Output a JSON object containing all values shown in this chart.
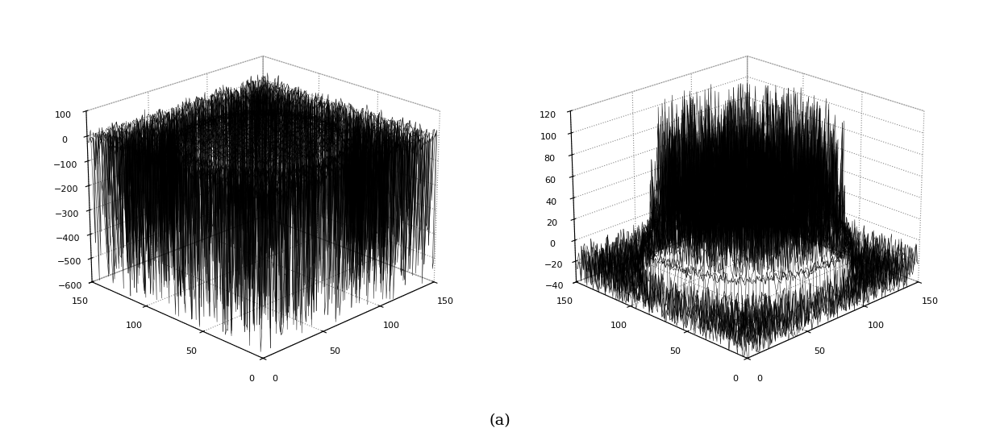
{
  "fig_width": 12.4,
  "fig_height": 5.36,
  "dpi": 100,
  "background_color": "#ffffff",
  "caption": "(a)",
  "caption_fontsize": 14,
  "grid_size": 150,
  "left_plot": {
    "zlim": [
      -600,
      100
    ],
    "zticks": [
      -600,
      -500,
      -400,
      -300,
      -200,
      -100,
      0,
      100
    ],
    "xlim": [
      0,
      150
    ],
    "ylim": [
      0,
      150
    ],
    "xticks": [
      0,
      50,
      100,
      150
    ],
    "yticks": [
      0,
      50,
      100,
      150
    ],
    "elev": 22,
    "azim": 225,
    "linewidth": 0.4,
    "color": "black",
    "rstride": 3,
    "cstride": 3
  },
  "right_plot": {
    "zlim": [
      -40,
      120
    ],
    "zticks": [
      -40,
      -20,
      0,
      20,
      40,
      60,
      80,
      100,
      120
    ],
    "xlim": [
      0,
      150
    ],
    "ylim": [
      0,
      150
    ],
    "xticks": [
      0,
      50,
      100,
      150
    ],
    "yticks": [
      0,
      50,
      100,
      150
    ],
    "elev": 22,
    "azim": 225,
    "linewidth": 0.4,
    "color": "black",
    "rstride": 3,
    "cstride": 3
  }
}
